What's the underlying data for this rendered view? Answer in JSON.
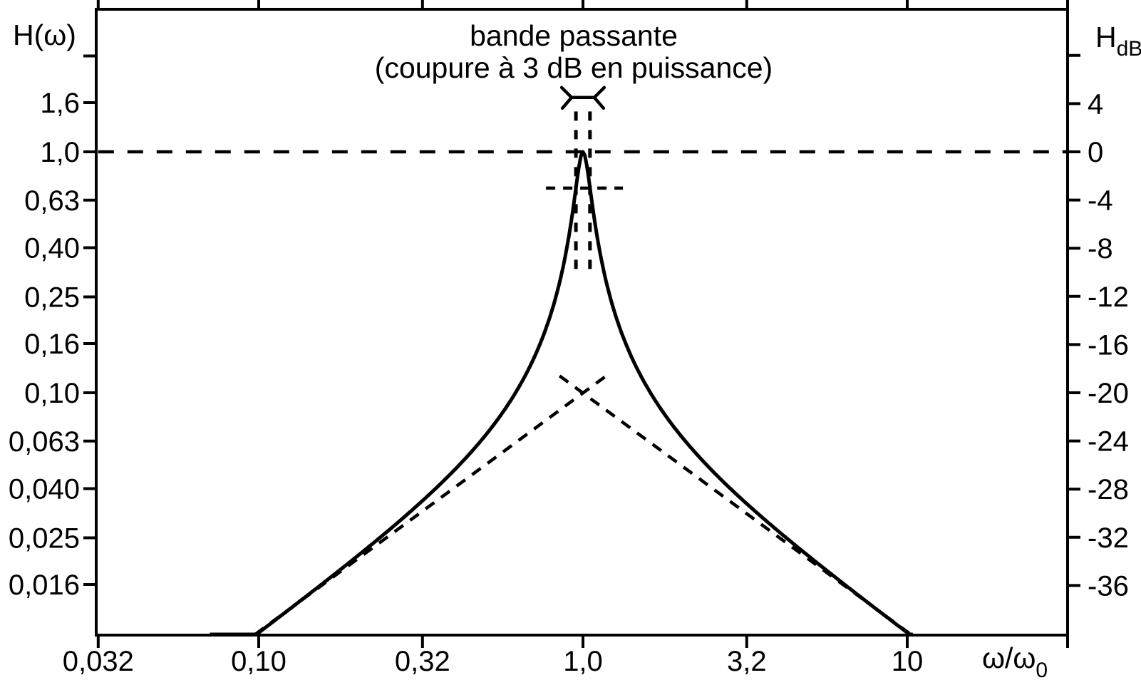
{
  "title": {
    "line1": "bande passante",
    "line2": "(coupure à 3 dB en puissance)"
  },
  "axis_labels": {
    "left": "H(ω)",
    "right_base": "H",
    "right_sub": "dB",
    "x_base": "ω/ω",
    "x_sub": "0"
  },
  "x_axis": {
    "scale": "log",
    "range": [
      0.032,
      31.6
    ],
    "ticks": [
      {
        "value": 0.032,
        "label": "0,032"
      },
      {
        "value": 0.1,
        "label": "0,10"
      },
      {
        "value": 0.32,
        "label": "0,32"
      },
      {
        "value": 1.0,
        "label": "1,0"
      },
      {
        "value": 3.2,
        "label": "3,2"
      },
      {
        "value": 10,
        "label": "10"
      }
    ]
  },
  "y_left_axis": {
    "scale": "log",
    "range": [
      0.01,
      4.0
    ],
    "ticks": [
      {
        "value": 1.6,
        "label": "1,6"
      },
      {
        "value": 1.0,
        "label": "1,0"
      },
      {
        "value": 0.63,
        "label": "0,63"
      },
      {
        "value": 0.4,
        "label": "0,40"
      },
      {
        "value": 0.25,
        "label": "0,25"
      },
      {
        "value": 0.16,
        "label": "0,16"
      },
      {
        "value": 0.1,
        "label": "0,10"
      },
      {
        "value": 0.063,
        "label": "0,063"
      },
      {
        "value": 0.04,
        "label": "0,040"
      },
      {
        "value": 0.025,
        "label": "0,025"
      },
      {
        "value": 0.016,
        "label": "0,016"
      }
    ],
    "unlabeled_tick_values": [
      2.5
    ]
  },
  "y_right_axis": {
    "unit": "dB",
    "range": [
      -40,
      12
    ],
    "ticks": [
      {
        "value": 4,
        "label": "4"
      },
      {
        "value": 0,
        "label": "0"
      },
      {
        "value": -4,
        "label": "-4"
      },
      {
        "value": -8,
        "label": "-8"
      },
      {
        "value": -12,
        "label": "-12"
      },
      {
        "value": -16,
        "label": "-16"
      },
      {
        "value": -20,
        "label": "-20"
      },
      {
        "value": -24,
        "label": "-24"
      },
      {
        "value": -28,
        "label": "-28"
      },
      {
        "value": -32,
        "label": "-32"
      },
      {
        "value": -36,
        "label": "-36"
      }
    ],
    "unlabeled_tick_values": [
      8
    ]
  },
  "chart_data": {
    "type": "line",
    "title": "bande passante (coupure à 3 dB en puissance)",
    "xlabel": "ω/ω0",
    "ylabel_left": "H(ω)",
    "ylabel_right": "HdB",
    "x_scale": "log",
    "y_scale": "log",
    "x_range": [
      0.032,
      31.6
    ],
    "y_range_H": [
      0.01,
      4.0
    ],
    "y_range_dB": [
      -40,
      12
    ],
    "grid": false,
    "series": [
      {
        "name": "resonance-response",
        "style": "solid",
        "model": "H = 1/sqrt(1 + Q^2*(w - 1/w)^2)",
        "Q": 10,
        "peak": {
          "x": 1.0,
          "H": 1.0
        },
        "x_draw_range": [
          0.0707,
          10.4
        ],
        "points": [
          [
            0.1,
            0.0101
          ],
          [
            0.16,
            0.0164
          ],
          [
            0.25,
            0.0266
          ],
          [
            0.32,
            0.0356
          ],
          [
            0.4,
            0.0476
          ],
          [
            0.5,
            0.0665
          ],
          [
            0.63,
            0.104
          ],
          [
            0.7,
            0.136
          ],
          [
            0.8,
            0.217
          ],
          [
            0.9,
            0.428
          ],
          [
            0.951,
            0.707
          ],
          [
            1.0,
            1.0
          ],
          [
            1.051,
            0.707
          ],
          [
            1.1,
            0.464
          ],
          [
            1.25,
            0.217
          ],
          [
            1.4,
            0.144
          ],
          [
            1.6,
            0.102
          ],
          [
            2.0,
            0.0665
          ],
          [
            2.5,
            0.0476
          ],
          [
            3.2,
            0.0346
          ],
          [
            4.0,
            0.0266
          ],
          [
            5.0,
            0.0208
          ],
          [
            6.3,
            0.0163
          ],
          [
            8.0,
            0.0127
          ],
          [
            10.0,
            0.0101
          ]
        ]
      },
      {
        "name": "low-frequency-asymptote",
        "style": "dashed",
        "slope_dB_per_decade": 20,
        "points": [
          [
            0.0975,
            0.00975
          ],
          [
            1.18,
            0.1175
          ]
        ]
      },
      {
        "name": "high-frequency-asymptote",
        "style": "dashed",
        "slope_dB_per_decade": -20,
        "points": [
          [
            0.847,
            0.1175
          ],
          [
            10.25,
            0.00975
          ]
        ]
      }
    ],
    "reference_lines": [
      {
        "name": "unity-gain",
        "H": 1.0,
        "dB": 0,
        "style": "dashed",
        "x_span": [
          0.032,
          31.6
        ]
      },
      {
        "name": "minus-3dB-level",
        "H": 0.707,
        "dB": -3,
        "style": "dashed",
        "x_span": [
          0.769,
          1.328
        ]
      }
    ],
    "bandwidth": {
      "omega1": 0.951,
      "omega2": 1.051,
      "marker_H_top": 1.47,
      "marker_H_bottom": 0.31,
      "bracket_H": 1.68
    },
    "asymptote_crossing": {
      "x": 1.0,
      "H": 0.1
    }
  }
}
